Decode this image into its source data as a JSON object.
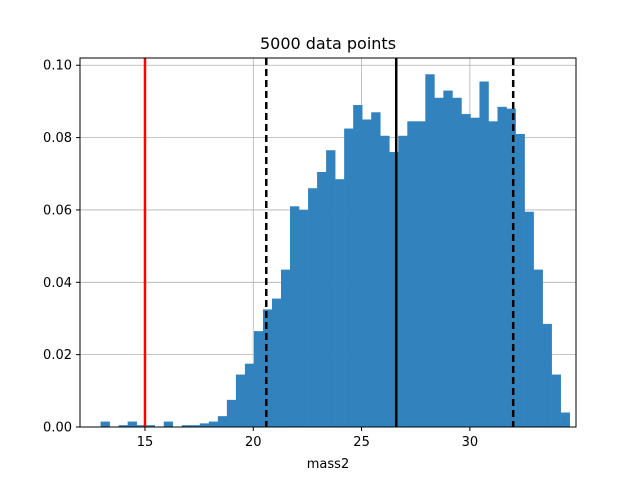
{
  "chart_data": {
    "type": "bar",
    "title": "5000 data points",
    "xlabel": "mass2",
    "ylabel": "",
    "xlim": [
      12.0,
      34.9
    ],
    "ylim": [
      0.0,
      0.102
    ],
    "grid": true,
    "x_ticks": [
      15,
      20,
      25,
      30
    ],
    "y_ticks": [
      0.0,
      0.02,
      0.04,
      0.06,
      0.08,
      0.1
    ],
    "x_tick_labels": [
      "15",
      "20",
      "25",
      "30"
    ],
    "y_tick_labels": [
      "0.00",
      "0.02",
      "0.04",
      "0.06",
      "0.08",
      "0.10"
    ],
    "bar_color": "#3182bd",
    "bin_start": 12.95,
    "bin_width": 0.4165,
    "values": [
      0.0015,
      0.0,
      0.0005,
      0.0015,
      0.0005,
      0.0005,
      0.0,
      0.0015,
      0.0,
      0.0005,
      0.0005,
      0.001,
      0.0015,
      0.003,
      0.0075,
      0.0145,
      0.0175,
      0.0265,
      0.0325,
      0.0355,
      0.0435,
      0.061,
      0.06,
      0.066,
      0.0705,
      0.0765,
      0.0685,
      0.0825,
      0.089,
      0.085,
      0.087,
      0.0805,
      0.076,
      0.0805,
      0.0845,
      0.0845,
      0.0975,
      0.091,
      0.093,
      0.091,
      0.0865,
      0.0855,
      0.0955,
      0.0845,
      0.0885,
      0.088,
      0.081,
      0.0595,
      0.0435,
      0.0285,
      0.0145,
      0.004
    ],
    "reference_lines": [
      {
        "x": 15.0,
        "color": "#ff0000",
        "style": "solid"
      },
      {
        "x": 20.6,
        "color": "#000000",
        "style": "dashed"
      },
      {
        "x": 26.6,
        "color": "#000000",
        "style": "solid"
      },
      {
        "x": 32.0,
        "color": "#000000",
        "style": "dashed"
      }
    ]
  }
}
